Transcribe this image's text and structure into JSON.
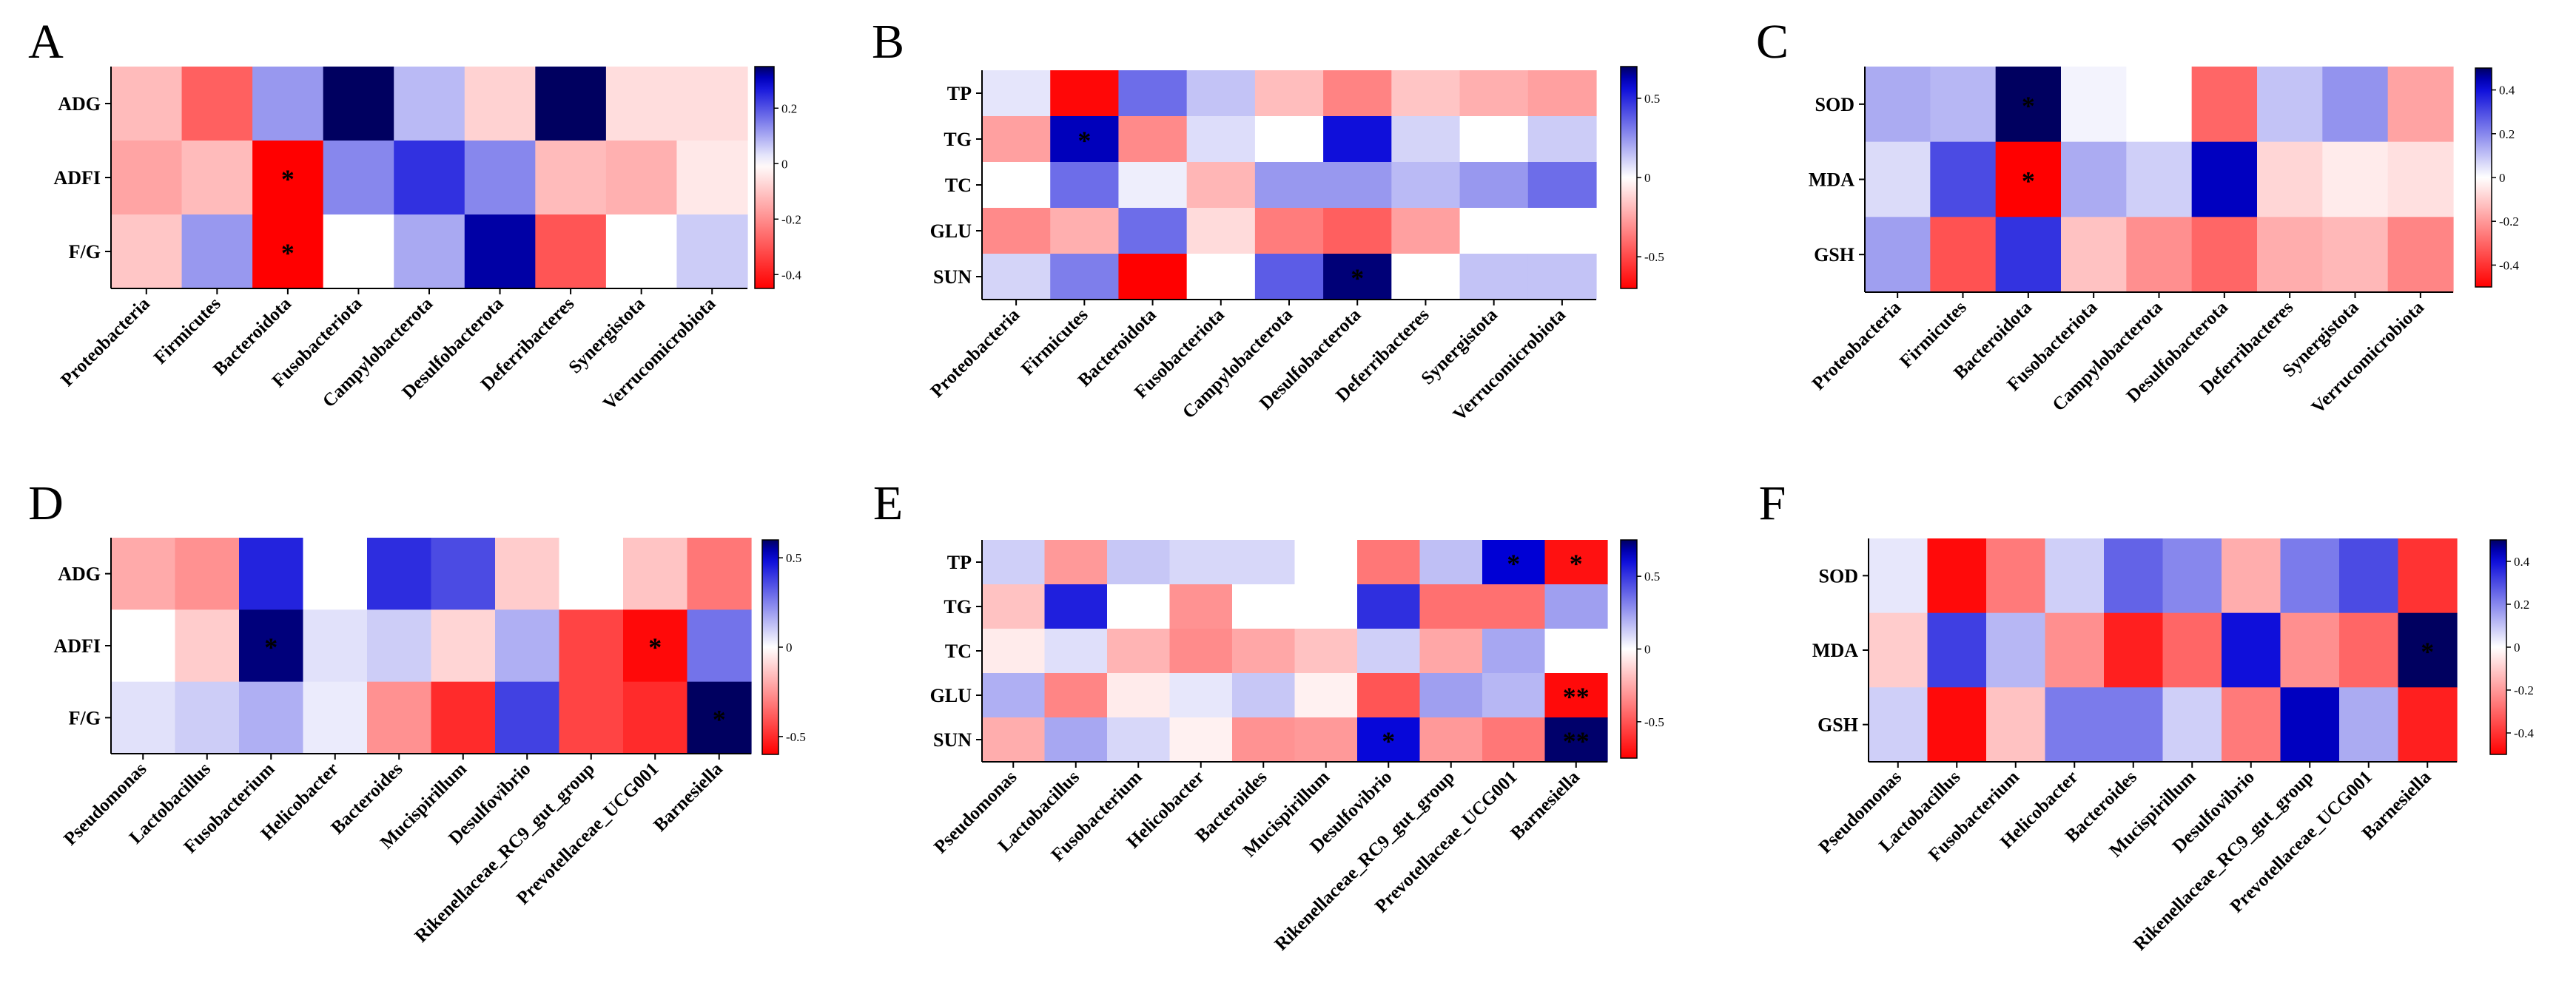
{
  "chart_data": [
    {
      "type": "heatmap",
      "panel": "A",
      "rows": [
        "ADG",
        "ADFI",
        "F/G"
      ],
      "columns": [
        "Proteobacteria",
        "Firmicutes",
        "Bacteroidota",
        "Fusobacteriota",
        "Campylobacterota",
        "Desulfobacterota",
        "Deferribacteres",
        "Synergistota",
        "Verrucomicrobiota"
      ],
      "values": [
        [
          -0.12,
          -0.28,
          0.12,
          0.36,
          0.08,
          -0.08,
          0.36,
          -0.06,
          -0.06
        ],
        [
          -0.16,
          -0.12,
          -0.45,
          0.14,
          0.24,
          0.14,
          -0.12,
          -0.14,
          -0.04
        ],
        [
          -0.1,
          0.12,
          -0.45,
          0.0,
          0.1,
          0.32,
          -0.3,
          0.0,
          0.06
        ]
      ],
      "significance": [
        [
          "",
          "",
          "",
          "",
          "",
          "",
          "",
          "",
          ""
        ],
        [
          "",
          "",
          "*",
          "",
          "",
          "",
          "",
          "",
          ""
        ],
        [
          "",
          "",
          "*",
          "",
          "",
          "",
          "",
          "",
          ""
        ]
      ],
      "colorbar": {
        "min": -0.45,
        "max": 0.35,
        "ticks": [
          0.2,
          0,
          -0.2,
          -0.4
        ],
        "tick_labels": [
          "0.2",
          "0",
          "-0.2",
          "-0.4"
        ]
      }
    },
    {
      "type": "heatmap",
      "panel": "B",
      "rows": [
        "TP",
        "TG",
        "TC",
        "GLU",
        "SUN"
      ],
      "columns": [
        "Proteobacteria",
        "Firmicutes",
        "Bacteroidota",
        "Fusobacteriota",
        "Campylobacterota",
        "Desulfobacterota",
        "Deferribacteres",
        "Synergistota",
        "Verrucomicrobiota"
      ],
      "values": [
        [
          0.06,
          -0.68,
          0.34,
          0.14,
          -0.18,
          -0.34,
          -0.16,
          -0.22,
          -0.26
        ],
        [
          -0.26,
          0.62,
          -0.32,
          0.08,
          0.0,
          0.56,
          0.1,
          0.0,
          0.12
        ],
        [
          0.0,
          0.34,
          0.04,
          -0.2,
          0.24,
          0.24,
          0.16,
          0.24,
          0.34
        ],
        [
          -0.32,
          -0.22,
          0.34,
          -0.1,
          -0.36,
          -0.44,
          -0.26,
          0.0,
          0.0
        ],
        [
          0.1,
          0.3,
          -0.7,
          0.0,
          0.38,
          0.68,
          0.0,
          0.14,
          0.14
        ]
      ],
      "significance": [
        [
          "",
          "",
          "",
          "",
          "",
          "",
          "",
          "",
          ""
        ],
        [
          "",
          "*",
          "",
          "",
          "",
          "",
          "",
          "",
          ""
        ],
        [
          "",
          "",
          "",
          "",
          "",
          "",
          "",
          "",
          ""
        ],
        [
          "",
          "",
          "",
          "",
          "",
          "",
          "",
          "",
          ""
        ],
        [
          "",
          "",
          "",
          "",
          "",
          "*",
          "",
          "",
          ""
        ]
      ],
      "colorbar": {
        "min": -0.7,
        "max": 0.7,
        "ticks": [
          0.5,
          0,
          -0.5
        ],
        "tick_labels": [
          "0.5",
          "0",
          "-0.5"
        ]
      }
    },
    {
      "type": "heatmap",
      "panel": "C",
      "rows": [
        "SOD",
        "MDA",
        "GSH"
      ],
      "columns": [
        "Proteobacteria",
        "Firmicutes",
        "Bacteroidota",
        "Fusobacteriota",
        "Campylobacterota",
        "Desulfobacterota",
        "Deferribacteres",
        "Synergistota",
        "Verrucomicrobiota"
      ],
      "values": [
        [
          0.14,
          0.12,
          0.5,
          0.02,
          0.0,
          -0.3,
          0.1,
          0.18,
          -0.18
        ],
        [
          0.06,
          0.3,
          -0.5,
          0.14,
          0.08,
          0.44,
          -0.08,
          -0.04,
          -0.06
        ],
        [
          0.16,
          -0.34,
          0.34,
          -0.12,
          -0.22,
          -0.3,
          -0.16,
          -0.14,
          -0.24
        ]
      ],
      "significance": [
        [
          "",
          "",
          "*",
          "",
          "",
          "",
          "",
          "",
          ""
        ],
        [
          "",
          "",
          "*",
          "",
          "",
          "",
          "",
          "",
          ""
        ],
        [
          "",
          "",
          "",
          "",
          "",
          "",
          "",
          "",
          ""
        ]
      ],
      "colorbar": {
        "min": -0.5,
        "max": 0.5,
        "ticks": [
          0.4,
          0.2,
          0,
          -0.2,
          -0.4
        ],
        "tick_labels": [
          "0.4",
          "0.2",
          "0",
          "-0.2",
          "-0.4"
        ]
      }
    },
    {
      "type": "heatmap",
      "panel": "D",
      "rows": [
        "ADG",
        "ADFI",
        "F/G"
      ],
      "columns": [
        "Pseudomonas",
        "Lactobacillus",
        "Fusobacterium",
        "Helicobacter",
        "Bacteroides",
        "Mucispirillum",
        "Desulfovibrio",
        "Rikenellaceae_RC9_gut_group",
        "Prevotellaceae_UCG001",
        "Barnesiella"
      ],
      "values": [
        [
          -0.2,
          -0.26,
          0.44,
          0.0,
          0.42,
          0.36,
          -0.12,
          0.0,
          -0.14,
          -0.32
        ],
        [
          0.0,
          -0.12,
          0.58,
          0.06,
          0.1,
          -0.1,
          0.16,
          -0.44,
          -0.58,
          0.28
        ],
        [
          0.06,
          0.1,
          0.16,
          0.04,
          -0.26,
          -0.5,
          0.38,
          -0.44,
          -0.5,
          0.62
        ]
      ],
      "significance": [
        [
          "",
          "",
          "",
          "",
          "",
          "",
          "",
          "",
          "",
          ""
        ],
        [
          "",
          "",
          "*",
          "",
          "",
          "",
          "",
          "",
          "*",
          ""
        ],
        [
          "",
          "",
          "",
          "",
          "",
          "",
          "",
          "",
          "",
          "*"
        ]
      ],
      "colorbar": {
        "min": -0.6,
        "max": 0.6,
        "ticks": [
          0.5,
          0,
          -0.5
        ],
        "tick_labels": [
          "0.5",
          "0",
          "-0.5"
        ]
      }
    },
    {
      "type": "heatmap",
      "panel": "E",
      "rows": [
        "TP",
        "TG",
        "TC",
        "GLU",
        "SUN"
      ],
      "columns": [
        "Pseudomonas",
        "Lactobacillus",
        "Fusobacterium",
        "Helicobacter",
        "Bacteroides",
        "Mucispirillum",
        "Desulfovibrio",
        "Rikenellaceae_RC9_gut_group",
        "Prevotellaceae_UCG001",
        "Barnesiella"
      ],
      "values": [
        [
          0.12,
          -0.3,
          0.14,
          0.1,
          0.1,
          0.0,
          -0.4,
          0.16,
          0.64,
          -0.7
        ],
        [
          -0.18,
          0.56,
          0.0,
          -0.32,
          0.0,
          0.0,
          0.52,
          -0.42,
          -0.42,
          0.24
        ],
        [
          -0.06,
          0.08,
          -0.22,
          -0.34,
          -0.26,
          -0.18,
          0.12,
          -0.26,
          0.22,
          0.0
        ],
        [
          0.2,
          -0.36,
          -0.06,
          0.06,
          0.14,
          -0.04,
          -0.5,
          0.24,
          0.18,
          -0.72
        ],
        [
          -0.24,
          0.22,
          0.1,
          -0.04,
          -0.32,
          -0.3,
          0.62,
          -0.3,
          -0.4,
          0.74
        ]
      ],
      "significance": [
        [
          "",
          "",
          "",
          "",
          "",
          "",
          "",
          "",
          "*",
          "*"
        ],
        [
          "",
          "",
          "",
          "",
          "",
          "",
          "",
          "",
          "",
          ""
        ],
        [
          "",
          "",
          "",
          "",
          "",
          "",
          "",
          "",
          "",
          ""
        ],
        [
          "",
          "",
          "",
          "",
          "",
          "",
          "",
          "",
          "",
          "**"
        ],
        [
          "",
          "",
          "",
          "",
          "",
          "",
          "*",
          "",
          "",
          "**"
        ]
      ],
      "colorbar": {
        "min": -0.75,
        "max": 0.75,
        "ticks": [
          0.5,
          0,
          -0.5
        ],
        "tick_labels": [
          "0.5",
          "0",
          "-0.5"
        ]
      }
    },
    {
      "type": "heatmap",
      "panel": "F",
      "rows": [
        "SOD",
        "MDA",
        "GSH"
      ],
      "columns": [
        "Pseudomonas",
        "Lactobacillus",
        "Fusobacterium",
        "Helicobacter",
        "Bacteroides",
        "Mucispirillum",
        "Desulfovibrio",
        "Rikenellaceae_RC9_gut_group",
        "Prevotellaceae_UCG001",
        "Barnesiella"
      ],
      "values": [
        [
          0.04,
          -0.48,
          -0.26,
          0.08,
          0.26,
          0.2,
          -0.16,
          0.22,
          0.3,
          -0.4
        ],
        [
          -0.1,
          0.32,
          0.12,
          -0.22,
          -0.44,
          -0.3,
          0.4,
          -0.22,
          -0.3,
          0.5
        ],
        [
          0.08,
          -0.48,
          -0.12,
          0.22,
          0.22,
          0.08,
          -0.26,
          0.44,
          0.14,
          -0.44
        ]
      ],
      "significance": [
        [
          "",
          "",
          "",
          "",
          "",
          "",
          "",
          "",
          "",
          ""
        ],
        [
          "",
          "",
          "",
          "",
          "",
          "",
          "",
          "",
          "",
          "*"
        ],
        [
          "",
          "",
          "",
          "",
          "",
          "",
          "",
          "",
          "",
          ""
        ]
      ],
      "colorbar": {
        "min": -0.5,
        "max": 0.5,
        "ticks": [
          0.4,
          0.2,
          0,
          -0.2,
          -0.4
        ],
        "tick_labels": [
          "0.4",
          "0.2",
          "0",
          "-0.2",
          "-0.4"
        ]
      }
    }
  ],
  "colors": {
    "negative": "#ff0000",
    "zero": "#ffffff",
    "positive": "#0000d8",
    "high": "#000060"
  }
}
